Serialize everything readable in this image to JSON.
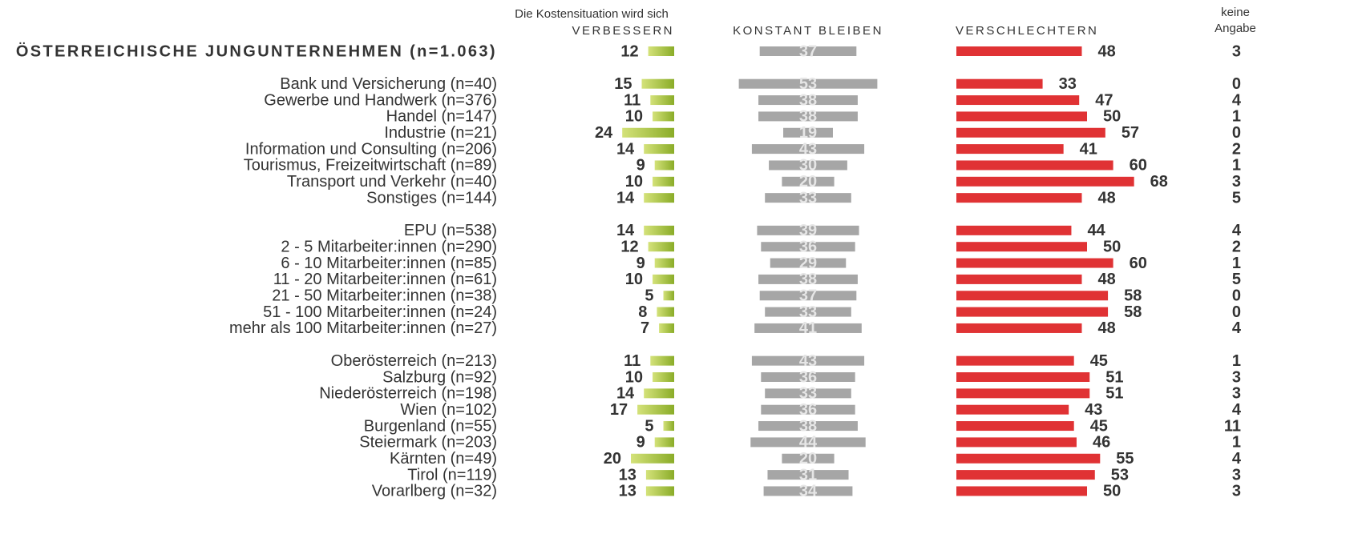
{
  "chart_data": {
    "type": "bar",
    "subtitle": "Die Kostensituation wird sich",
    "categories": [
      "ÖSTERREICHISCHE JUNGUNTERNEHMEN (n=1.063)",
      "Bank und Versicherung (n=40)",
      "Gewerbe und Handwerk (n=376)",
      "Handel (n=147)",
      "Industrie (n=21)",
      "Information und Consulting (n=206)",
      "Tourismus, Freizeitwirtschaft (n=89)",
      "Transport und Verkehr (n=40)",
      "Sonstiges (n=144)",
      "EPU (n=538)",
      "2 - 5 Mitarbeiter:innen (n=290)",
      "6 - 10 Mitarbeiter:innen (n=85)",
      "11 - 20 Mitarbeiter:innen (n=61)",
      "21 - 50 Mitarbeiter:innen (n=38)",
      "51 - 100 Mitarbeiter:innen (n=24)",
      "mehr als 100 Mitarbeiter:innen (n=27)",
      "Oberösterreich (n=213)",
      "Salzburg (n=92)",
      "Niederösterreich (n=198)",
      "Wien (n=102)",
      "Burgenland (n=55)",
      "Steiermark (n=203)",
      "Kärnten (n=49)",
      "Tirol (n=119)",
      "Vorarlberg (n=32)"
    ],
    "series": [
      {
        "name": "VERBESSERN",
        "color": "#8db52a",
        "values": [
          12,
          15,
          11,
          10,
          24,
          14,
          9,
          10,
          14,
          14,
          12,
          9,
          10,
          5,
          8,
          7,
          11,
          10,
          14,
          17,
          5,
          9,
          20,
          13,
          13
        ]
      },
      {
        "name": "KONSTANT BLEIBEN",
        "color": "#a6a6a6",
        "values": [
          37,
          53,
          38,
          38,
          19,
          43,
          30,
          20,
          33,
          39,
          36,
          29,
          38,
          37,
          33,
          41,
          43,
          36,
          33,
          36,
          38,
          44,
          20,
          31,
          34
        ]
      },
      {
        "name": "VERSCHLECHTERN",
        "color": "#e03234",
        "values": [
          48,
          33,
          47,
          50,
          57,
          41,
          60,
          68,
          48,
          44,
          50,
          60,
          48,
          58,
          58,
          48,
          45,
          51,
          51,
          43,
          45,
          46,
          55,
          53,
          50
        ]
      },
      {
        "name": "keine Angabe",
        "values": [
          3,
          0,
          4,
          1,
          0,
          2,
          1,
          3,
          5,
          4,
          2,
          1,
          5,
          0,
          0,
          4,
          1,
          3,
          3,
          4,
          11,
          1,
          4,
          3,
          3
        ]
      }
    ]
  }
}
